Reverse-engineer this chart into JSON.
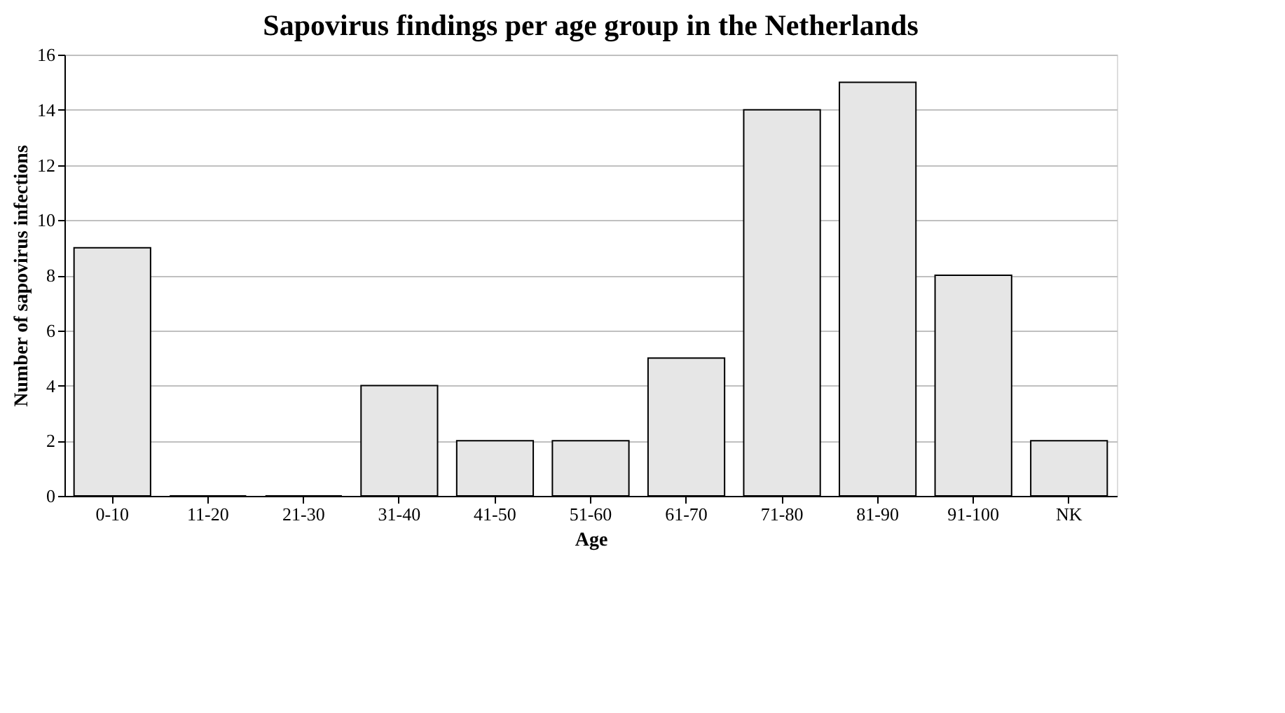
{
  "chart_data": {
    "type": "bar",
    "title": "Sapovirus findings per age group in the Netherlands",
    "xlabel": "Age",
    "ylabel": "Number of sapovirus infections",
    "categories": [
      "0-10",
      "11-20",
      "21-30",
      "31-40",
      "41-50",
      "51-60",
      "61-70",
      "71-80",
      "81-90",
      "91-100",
      "NK"
    ],
    "values": [
      9,
      0,
      0,
      4,
      2,
      2,
      5,
      14,
      15,
      8,
      2
    ],
    "color": "#e6e6e6",
    "ylim": [
      0,
      16
    ],
    "yticks": [
      0,
      2,
      4,
      6,
      8,
      10,
      12,
      14,
      16
    ],
    "grid": "y"
  }
}
